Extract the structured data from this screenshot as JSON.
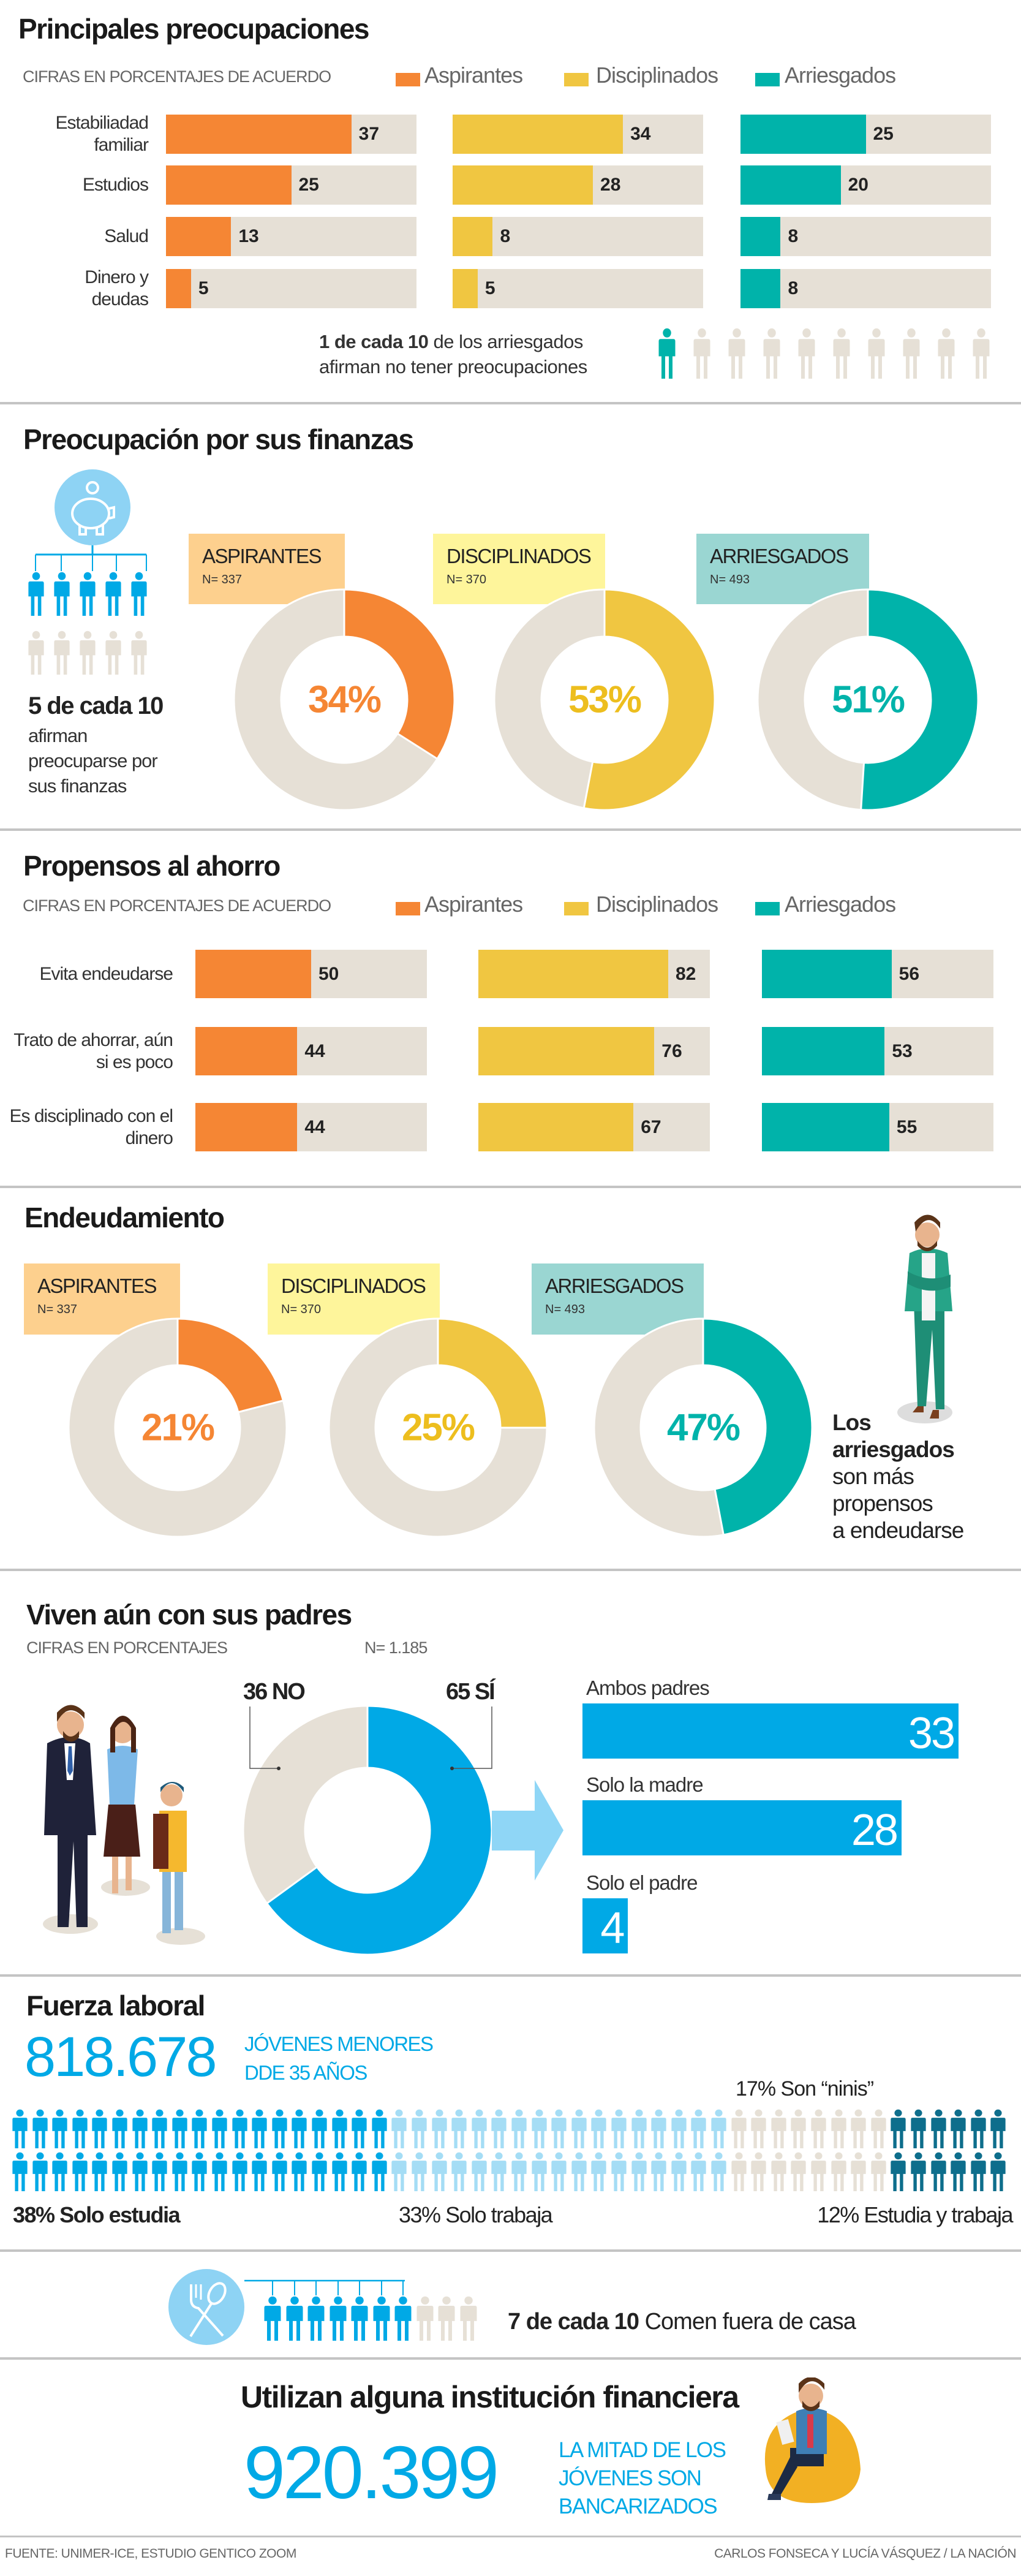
{
  "colors": {
    "aspirantes": "#F58634",
    "disciplinados": "#F0C641",
    "arriesgados": "#00B3AA",
    "track": "#E6E0D6",
    "blue": "#00A9E6",
    "light_blue": "#A5DDF5",
    "dark_teal": "#0E6E8C",
    "box_aspirantes": "#FDD08E",
    "box_disciplinados": "#FEF59B",
    "box_arriesgados": "#9AD6D2"
  },
  "chart_data": [
    {
      "type": "bar",
      "title": "Principales preocupaciones",
      "subtitle": "CIFRAS EN PORCENTAJES DE ACUERDO",
      "legend": [
        "Aspirantes",
        "Disciplinados",
        "Arriesgados"
      ],
      "categories": [
        "Estabiliadad familiar",
        "Estudios",
        "Salud",
        "Dinero y deudas"
      ],
      "series": [
        {
          "name": "Aspirantes",
          "values": [
            37,
            25,
            13,
            5
          ]
        },
        {
          "name": "Disciplinados",
          "values": [
            34,
            28,
            8,
            5
          ]
        },
        {
          "name": "Arriesgados",
          "values": [
            25,
            20,
            8,
            8
          ]
        }
      ],
      "xlim": [
        0,
        50
      ]
    },
    {
      "type": "pie",
      "title": "Preocupación por sus finanzas",
      "series": [
        {
          "name": "ASPIRANTES",
          "n": "N= 337",
          "value": 34,
          "label": "34%"
        },
        {
          "name": "DISCIPLINADOS",
          "n": "N= 370",
          "value": 53,
          "label": "53%"
        },
        {
          "name": "ARRIESGADOS",
          "n": "N= 493",
          "value": 51,
          "label": "51%"
        }
      ]
    },
    {
      "type": "bar",
      "title": "Propensos al ahorro",
      "subtitle": "CIFRAS EN PORCENTAJES DE ACUERDO",
      "legend": [
        "Aspirantes",
        "Disciplinados",
        "Arriesgados"
      ],
      "categories": [
        "Evita endeudarse",
        "Trato de ahorrar, aún si es poco",
        "Es disciplinado con el dinero"
      ],
      "series": [
        {
          "name": "Aspirantes",
          "values": [
            50,
            44,
            44
          ]
        },
        {
          "name": "Disciplinados",
          "values": [
            82,
            76,
            67
          ]
        },
        {
          "name": "Arriesgados",
          "values": [
            56,
            53,
            55
          ]
        }
      ],
      "xlim": [
        0,
        100
      ]
    },
    {
      "type": "pie",
      "title": "Endeudamiento",
      "series": [
        {
          "name": "ASPIRANTES",
          "n": "N= 337",
          "value": 21,
          "label": "21%"
        },
        {
          "name": "DISCIPLINADOS",
          "n": "N= 370",
          "value": 25,
          "label": "25%"
        },
        {
          "name": "ARRIESGADOS",
          "n": "N= 493",
          "value": 47,
          "label": "47%"
        }
      ]
    },
    {
      "type": "pie",
      "title": "Viven aún con sus padres",
      "subtitle": "CIFRAS EN PORCENTAJES",
      "n": "N= 1.185",
      "slices": [
        {
          "label": "36 NO",
          "value": 36
        },
        {
          "label": "65 SÍ",
          "value": 65
        }
      ]
    },
    {
      "type": "bar",
      "categories": [
        "Ambos padres",
        "Solo la madre",
        "Solo el padre"
      ],
      "values": [
        33,
        28,
        4
      ]
    },
    {
      "type": "bar",
      "title": "Fuerza laboral",
      "total": "818.678",
      "total_desc": [
        "JÓVENES MENORES",
        "DDE 35 AÑOS"
      ],
      "segments": [
        {
          "pct": "38%",
          "label": "Solo estudia",
          "value": 38
        },
        {
          "pct": "33%",
          "label": "Solo trabaja",
          "value": 33
        },
        {
          "pct": "17%",
          "label": "Son “ninis”",
          "value": 17
        },
        {
          "pct": "12%",
          "label": "Estudia y trabaja",
          "value": 12
        }
      ]
    }
  ],
  "notes": {
    "no_worries_bold": "1 de cada 10",
    "no_worries_line1": "de los arriesgados",
    "no_worries_line2": "afirman no tener preocupaciones",
    "no_worries_count": 1,
    "finance_bold": "5 de cada 10",
    "finance_lines": [
      "afirman",
      "preocuparse por",
      "sus finanzas"
    ],
    "finance_count": 5,
    "debt_bold": [
      "Los",
      "arriesgados"
    ],
    "debt_lines": [
      "son más",
      "propensos",
      "a endeudarse"
    ],
    "eat_bold": "7 de cada 10",
    "eat_text": "Comen fuera de casa",
    "eat_count": 7
  },
  "banking": {
    "title": "Utilizan alguna institución financiera",
    "number": "920.399",
    "desc": [
      "LA MITAD DE LOS",
      "JÓVENES SON",
      "BANCARIZADOS"
    ]
  },
  "footer": {
    "source": "FUENTE: UNIMER-ICE, ESTUDIO GENTICO ZOOM",
    "credit": "CARLOS FONSECA Y LUCÍA VÁSQUEZ  / LA NACIÓN"
  }
}
